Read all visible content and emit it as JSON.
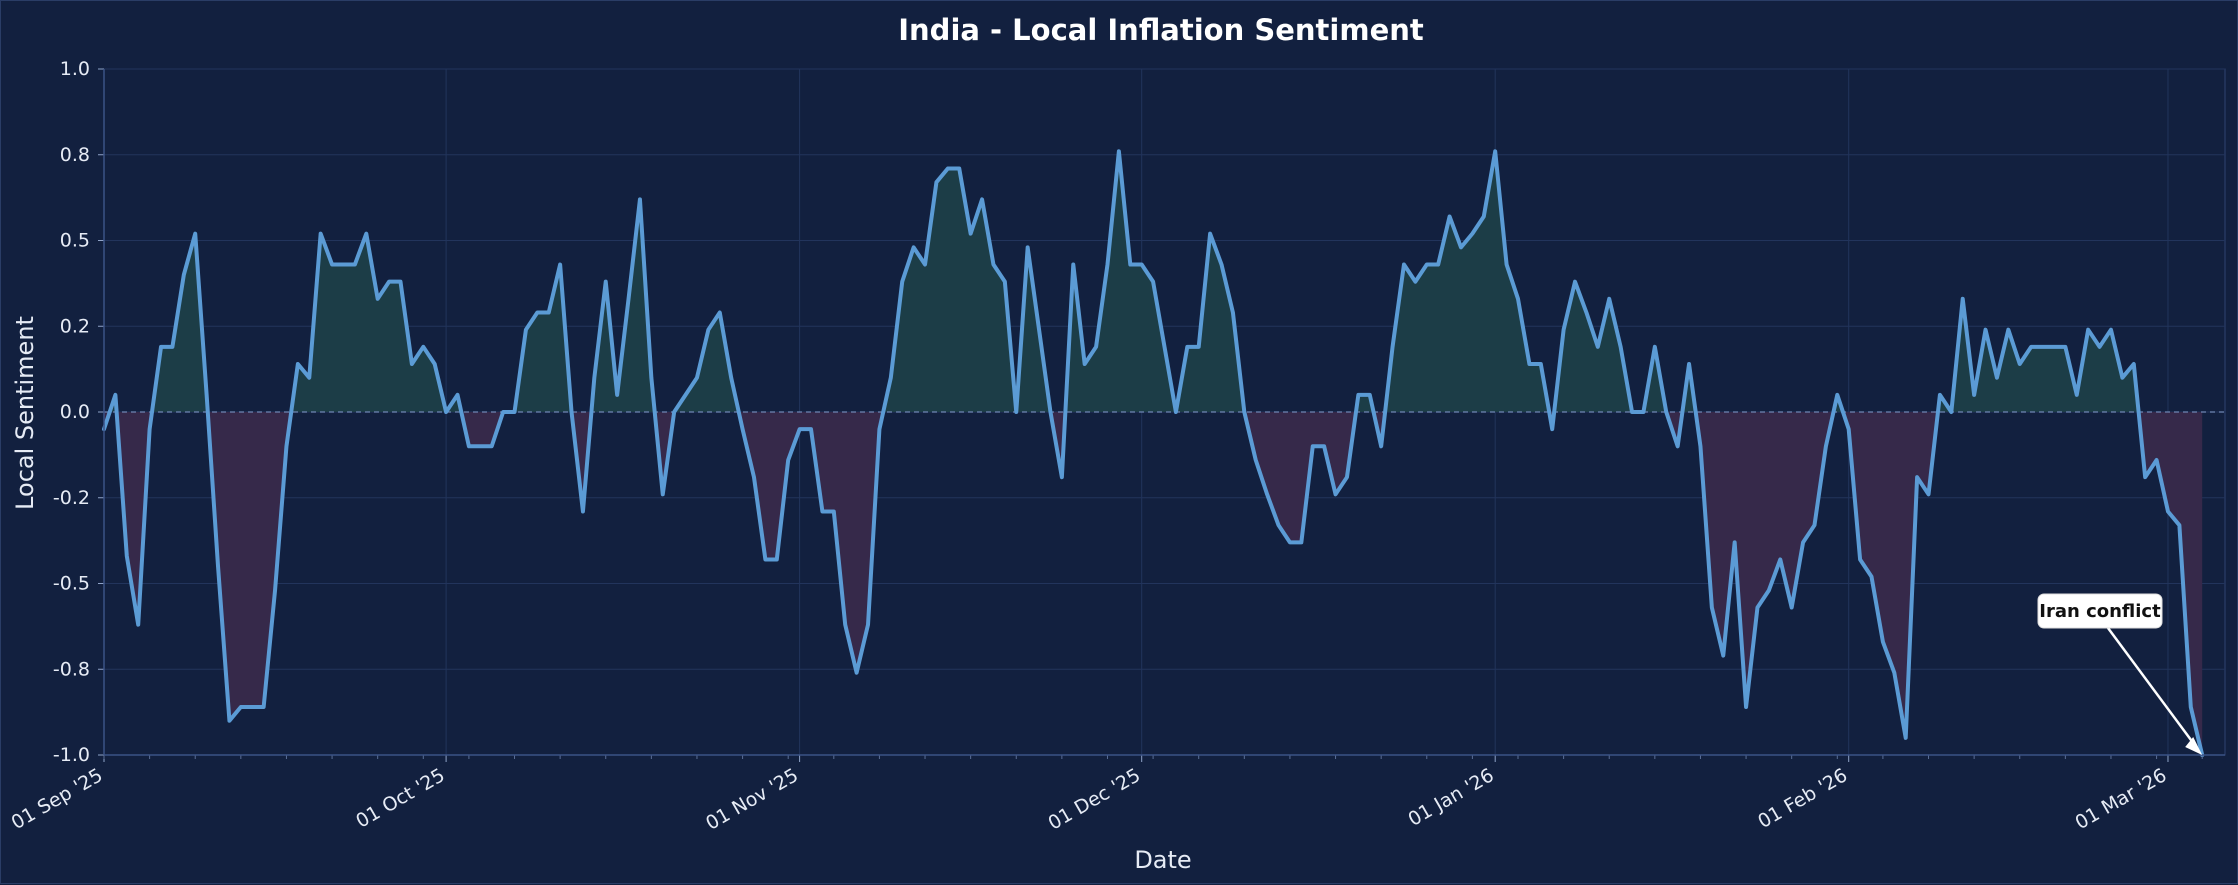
{
  "chart_data": {
    "type": "line",
    "title": "India - Local Inflation Sentiment",
    "xlabel": "Date",
    "ylabel": "Local Sentiment",
    "ylim": [
      -1.0,
      1.0
    ],
    "xlim": [
      "2025-09-01",
      "2026-03-06"
    ],
    "grid": true,
    "zero_line": true,
    "fill_positive_color": "#1c3d47",
    "fill_negative_color": "#36294a",
    "line_color": "#5b9bd5",
    "background_color": "#12203f",
    "y_ticks": [
      {
        "value": 1.0,
        "label": "1.0"
      },
      {
        "value": 0.75,
        "label": "0.8"
      },
      {
        "value": 0.5,
        "label": "0.5"
      },
      {
        "value": 0.25,
        "label": "0.2"
      },
      {
        "value": 0.0,
        "label": "0.0"
      },
      {
        "value": -0.25,
        "label": "-0.2"
      },
      {
        "value": -0.5,
        "label": "-0.5"
      },
      {
        "value": -0.75,
        "label": "-0.8"
      },
      {
        "value": -1.0,
        "label": "-1.0"
      }
    ],
    "x_ticks": [
      {
        "date": "2025-09-01",
        "label": "01 Sep '25"
      },
      {
        "date": "2025-10-01",
        "label": "01 Oct '25"
      },
      {
        "date": "2025-11-01",
        "label": "01 Nov '25"
      },
      {
        "date": "2025-12-01",
        "label": "01 Dec '25"
      },
      {
        "date": "2026-01-01",
        "label": "01 Jan '26"
      },
      {
        "date": "2026-02-01",
        "label": "01 Feb '26"
      },
      {
        "date": "2026-03-01",
        "label": "01 Mar '26"
      }
    ],
    "series": [
      {
        "values": [
          [
            "2025-09-01",
            -0.05
          ],
          [
            "2025-09-02",
            0.05
          ],
          [
            "2025-09-03",
            -0.42
          ],
          [
            "2025-09-04",
            -0.62
          ],
          [
            "2025-09-05",
            -0.05
          ],
          [
            "2025-09-06",
            0.19
          ],
          [
            "2025-09-07",
            0.19
          ],
          [
            "2025-09-08",
            0.4
          ],
          [
            "2025-09-09",
            0.52
          ],
          [
            "2025-09-10",
            0.05
          ],
          [
            "2025-09-11",
            -0.45
          ],
          [
            "2025-09-12",
            -0.9
          ],
          [
            "2025-09-13",
            -0.86
          ],
          [
            "2025-09-14",
            -0.86
          ],
          [
            "2025-09-15",
            -0.86
          ],
          [
            "2025-09-16",
            -0.52
          ],
          [
            "2025-09-17",
            -0.1
          ],
          [
            "2025-09-18",
            0.14
          ],
          [
            "2025-09-19",
            0.1
          ],
          [
            "2025-09-20",
            0.52
          ],
          [
            "2025-09-21",
            0.43
          ],
          [
            "2025-09-22",
            0.43
          ],
          [
            "2025-09-23",
            0.43
          ],
          [
            "2025-09-24",
            0.52
          ],
          [
            "2025-09-25",
            0.33
          ],
          [
            "2025-09-26",
            0.38
          ],
          [
            "2025-09-27",
            0.38
          ],
          [
            "2025-09-28",
            0.14
          ],
          [
            "2025-09-29",
            0.19
          ],
          [
            "2025-09-30",
            0.14
          ],
          [
            "2025-10-01",
            0.0
          ],
          [
            "2025-10-02",
            0.05
          ],
          [
            "2025-10-03",
            -0.1
          ],
          [
            "2025-10-04",
            -0.1
          ],
          [
            "2025-10-05",
            -0.1
          ],
          [
            "2025-10-06",
            0.0
          ],
          [
            "2025-10-07",
            0.0
          ],
          [
            "2025-10-08",
            0.24
          ],
          [
            "2025-10-09",
            0.29
          ],
          [
            "2025-10-10",
            0.29
          ],
          [
            "2025-10-11",
            0.43
          ],
          [
            "2025-10-12",
            0.0
          ],
          [
            "2025-10-13",
            -0.29
          ],
          [
            "2025-10-14",
            0.1
          ],
          [
            "2025-10-15",
            0.38
          ],
          [
            "2025-10-16",
            0.05
          ],
          [
            "2025-10-17",
            0.33
          ],
          [
            "2025-10-18",
            0.62
          ],
          [
            "2025-10-19",
            0.1
          ],
          [
            "2025-10-20",
            -0.24
          ],
          [
            "2025-10-21",
            0.0
          ],
          [
            "2025-10-22",
            0.05
          ],
          [
            "2025-10-23",
            0.1
          ],
          [
            "2025-10-24",
            0.24
          ],
          [
            "2025-10-25",
            0.29
          ],
          [
            "2025-10-26",
            0.1
          ],
          [
            "2025-10-27",
            -0.05
          ],
          [
            "2025-10-28",
            -0.19
          ],
          [
            "2025-10-29",
            -0.43
          ],
          [
            "2025-10-30",
            -0.43
          ],
          [
            "2025-10-31",
            -0.14
          ],
          [
            "2025-11-01",
            -0.05
          ],
          [
            "2025-11-02",
            -0.05
          ],
          [
            "2025-11-03",
            -0.29
          ],
          [
            "2025-11-04",
            -0.29
          ],
          [
            "2025-11-05",
            -0.62
          ],
          [
            "2025-11-06",
            -0.76
          ],
          [
            "2025-11-07",
            -0.62
          ],
          [
            "2025-11-08",
            -0.05
          ],
          [
            "2025-11-09",
            0.1
          ],
          [
            "2025-11-10",
            0.38
          ],
          [
            "2025-11-11",
            0.48
          ],
          [
            "2025-11-12",
            0.43
          ],
          [
            "2025-11-13",
            0.67
          ],
          [
            "2025-11-14",
            0.71
          ],
          [
            "2025-11-15",
            0.71
          ],
          [
            "2025-11-16",
            0.52
          ],
          [
            "2025-11-17",
            0.62
          ],
          [
            "2025-11-18",
            0.43
          ],
          [
            "2025-11-19",
            0.38
          ],
          [
            "2025-11-20",
            0.0
          ],
          [
            "2025-11-21",
            0.48
          ],
          [
            "2025-11-22",
            0.24
          ],
          [
            "2025-11-23",
            0.0
          ],
          [
            "2025-11-24",
            -0.19
          ],
          [
            "2025-11-25",
            0.43
          ],
          [
            "2025-11-26",
            0.14
          ],
          [
            "2025-11-27",
            0.19
          ],
          [
            "2025-11-28",
            0.43
          ],
          [
            "2025-11-29",
            0.76
          ],
          [
            "2025-11-30",
            0.43
          ],
          [
            "2025-12-01",
            0.43
          ],
          [
            "2025-12-02",
            0.38
          ],
          [
            "2025-12-03",
            0.19
          ],
          [
            "2025-12-04",
            0.0
          ],
          [
            "2025-12-05",
            0.19
          ],
          [
            "2025-12-06",
            0.19
          ],
          [
            "2025-12-07",
            0.52
          ],
          [
            "2025-12-08",
            0.43
          ],
          [
            "2025-12-09",
            0.29
          ],
          [
            "2025-12-10",
            0.0
          ],
          [
            "2025-12-11",
            -0.14
          ],
          [
            "2025-12-12",
            -0.24
          ],
          [
            "2025-12-13",
            -0.33
          ],
          [
            "2025-12-14",
            -0.38
          ],
          [
            "2025-12-15",
            -0.38
          ],
          [
            "2025-12-16",
            -0.1
          ],
          [
            "2025-12-17",
            -0.1
          ],
          [
            "2025-12-18",
            -0.24
          ],
          [
            "2025-12-19",
            -0.19
          ],
          [
            "2025-12-20",
            0.05
          ],
          [
            "2025-12-21",
            0.05
          ],
          [
            "2025-12-22",
            -0.1
          ],
          [
            "2025-12-23",
            0.19
          ],
          [
            "2025-12-24",
            0.43
          ],
          [
            "2025-12-25",
            0.38
          ],
          [
            "2025-12-26",
            0.43
          ],
          [
            "2025-12-27",
            0.43
          ],
          [
            "2025-12-28",
            0.57
          ],
          [
            "2025-12-29",
            0.48
          ],
          [
            "2025-12-30",
            0.52
          ],
          [
            "2025-12-31",
            0.57
          ],
          [
            "2026-01-01",
            0.76
          ],
          [
            "2026-01-02",
            0.43
          ],
          [
            "2026-01-03",
            0.33
          ],
          [
            "2026-01-04",
            0.14
          ],
          [
            "2026-01-05",
            0.14
          ],
          [
            "2026-01-06",
            -0.05
          ],
          [
            "2026-01-07",
            0.24
          ],
          [
            "2026-01-08",
            0.38
          ],
          [
            "2026-01-09",
            0.29
          ],
          [
            "2026-01-10",
            0.19
          ],
          [
            "2026-01-11",
            0.33
          ],
          [
            "2026-01-12",
            0.19
          ],
          [
            "2026-01-13",
            0.0
          ],
          [
            "2026-01-14",
            0.0
          ],
          [
            "2026-01-15",
            0.19
          ],
          [
            "2026-01-16",
            0.0
          ],
          [
            "2026-01-17",
            -0.1
          ],
          [
            "2026-01-18",
            0.14
          ],
          [
            "2026-01-19",
            -0.1
          ],
          [
            "2026-01-20",
            -0.57
          ],
          [
            "2026-01-21",
            -0.71
          ],
          [
            "2026-01-22",
            -0.38
          ],
          [
            "2026-01-23",
            -0.86
          ],
          [
            "2026-01-24",
            -0.57
          ],
          [
            "2026-01-25",
            -0.52
          ],
          [
            "2026-01-26",
            -0.43
          ],
          [
            "2026-01-27",
            -0.57
          ],
          [
            "2026-01-28",
            -0.38
          ],
          [
            "2026-01-29",
            -0.33
          ],
          [
            "2026-01-30",
            -0.1
          ],
          [
            "2026-01-31",
            0.05
          ],
          [
            "2026-02-01",
            -0.05
          ],
          [
            "2026-02-02",
            -0.43
          ],
          [
            "2026-02-03",
            -0.48
          ],
          [
            "2026-02-04",
            -0.67
          ],
          [
            "2026-02-05",
            -0.76
          ],
          [
            "2026-02-06",
            -0.95
          ],
          [
            "2026-02-07",
            -0.19
          ],
          [
            "2026-02-08",
            -0.24
          ],
          [
            "2026-02-09",
            0.05
          ],
          [
            "2026-02-10",
            0.0
          ],
          [
            "2026-02-11",
            0.33
          ],
          [
            "2026-02-12",
            0.05
          ],
          [
            "2026-02-13",
            0.24
          ],
          [
            "2026-02-14",
            0.1
          ],
          [
            "2026-02-15",
            0.24
          ],
          [
            "2026-02-16",
            0.14
          ],
          [
            "2026-02-17",
            0.19
          ],
          [
            "2026-02-18",
            0.19
          ],
          [
            "2026-02-19",
            0.19
          ],
          [
            "2026-02-20",
            0.19
          ],
          [
            "2026-02-21",
            0.05
          ],
          [
            "2026-02-22",
            0.24
          ],
          [
            "2026-02-23",
            0.19
          ],
          [
            "2026-02-24",
            0.24
          ],
          [
            "2026-02-25",
            0.1
          ],
          [
            "2026-02-26",
            0.14
          ],
          [
            "2026-02-27",
            -0.19
          ],
          [
            "2026-02-28",
            -0.14
          ],
          [
            "2026-03-01",
            -0.29
          ],
          [
            "2026-03-02",
            -0.33
          ],
          [
            "2026-03-03",
            -0.86
          ],
          [
            "2026-03-04",
            -1.0
          ]
        ]
      }
    ],
    "annotations": [
      {
        "text": "Iran conflict",
        "date": "2026-03-04",
        "value": -1.0
      }
    ]
  }
}
